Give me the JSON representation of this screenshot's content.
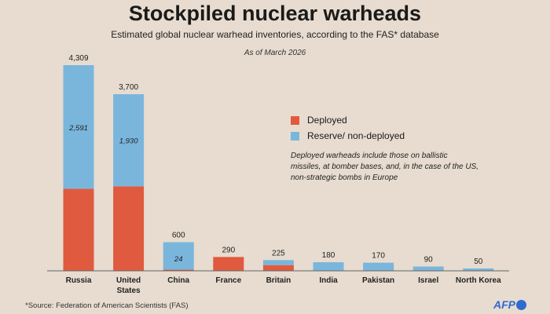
{
  "header": {
    "title": "Stockpiled nuclear warheads",
    "subtitle": "Estimated global nuclear warhead inventories, according to the FAS* database",
    "date": "As of March 2026"
  },
  "legend": {
    "deployed": "Deployed",
    "reserve": "Reserve/ non-deployed"
  },
  "note": "Deployed warheads include those on ballistic missiles, at bomber bases, and, in the case of the US, non-strategic bombs in Europe",
  "source": "*Source: Federation of American Scientists (FAS)",
  "logo": "AFP",
  "colors": {
    "deployed": "#e05a40",
    "reserve": "#7ab6dc",
    "background": "#e7dccf"
  },
  "chart_data": {
    "type": "bar",
    "stacked": true,
    "categories": [
      "Russia",
      "United States",
      "China",
      "France",
      "Britain",
      "India",
      "Pakistan",
      "Israel",
      "North Korea"
    ],
    "category_lines": [
      [
        "Russia"
      ],
      [
        "United",
        "States"
      ],
      [
        "China"
      ],
      [
        "France"
      ],
      [
        "Britain"
      ],
      [
        "India"
      ],
      [
        "Pakistan"
      ],
      [
        "Israel"
      ],
      [
        "North Korea"
      ]
    ],
    "totals": [
      4309,
      3700,
      600,
      290,
      225,
      180,
      170,
      90,
      50
    ],
    "total_labels": [
      "4,309",
      "3,700",
      "600",
      "290",
      "225",
      "180",
      "170",
      "90",
      "50"
    ],
    "series": [
      {
        "name": "Deployed",
        "values": [
          1718,
          1770,
          24,
          290,
          120,
          0,
          0,
          0,
          0
        ]
      },
      {
        "name": "Reserve/ non-deployed",
        "values": [
          2591,
          1930,
          576,
          0,
          105,
          180,
          170,
          90,
          50
        ]
      }
    ],
    "inner_labels": [
      "2,591",
      "1,930",
      "24",
      "",
      "",
      "",
      "",
      "",
      ""
    ],
    "ylim": [
      0,
      4309
    ],
    "grid": false,
    "legend_position": "right"
  }
}
